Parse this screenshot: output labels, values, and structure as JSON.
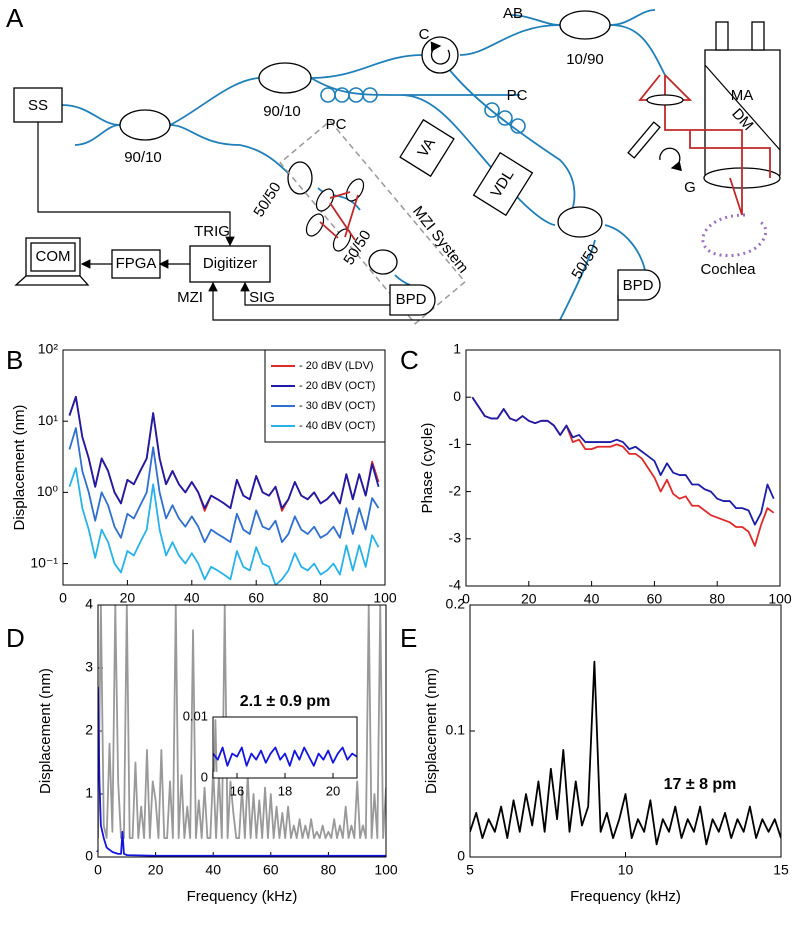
{
  "diagram": {
    "labels": [
      "A",
      "SS",
      "90/10",
      "90/10",
      "PC",
      "C",
      "AB",
      "10/90",
      "PC",
      "VA",
      "VDL",
      "50/50",
      "50/50",
      "50/50",
      "MZI System",
      "BPD",
      "BPD",
      "TRIG",
      "Digitizer",
      "FPGA",
      "COM",
      "MZI",
      "SIG",
      "MA",
      "DM",
      "G",
      "Cochlea"
    ]
  },
  "chart_data": [
    {
      "type": "line",
      "panel_label": "B",
      "ylabel": "Displacement (nm)",
      "log_y": true,
      "legend": "top-right",
      "xlim": [
        0,
        100
      ],
      "xticks": [
        0,
        20,
        40,
        60,
        80,
        100
      ],
      "ylim": [
        0.05,
        100
      ],
      "yticks": [
        {
          "value": 0.1,
          "label": "10⁻¹"
        },
        {
          "value": 1,
          "label": "10⁰"
        },
        {
          "value": 10,
          "label": "10¹"
        },
        {
          "value": 100,
          "label": "10²"
        }
      ],
      "x": [
        2,
        4,
        6,
        8,
        10,
        12,
        14,
        16,
        18,
        20,
        22,
        24,
        26,
        28,
        30,
        32,
        34,
        36,
        38,
        40,
        42,
        44,
        46,
        48,
        50,
        52,
        54,
        56,
        58,
        60,
        62,
        64,
        66,
        68,
        70,
        72,
        74,
        76,
        78,
        80,
        82,
        84,
        86,
        88,
        90,
        92,
        94,
        96,
        98
      ],
      "series": [
        {
          "name": "- 20 dBV (LDV)",
          "color": "#e02a2a",
          "values": [
            12,
            22,
            6,
            3,
            1.2,
            3,
            2,
            1,
            0.7,
            1.5,
            1.3,
            2,
            3,
            13,
            3,
            1.3,
            2,
            1.3,
            1,
            1.4,
            1,
            0.55,
            0.9,
            0.8,
            0.7,
            0.6,
            1.5,
            0.9,
            0.8,
            1.7,
            1,
            0.9,
            1.2,
            0.55,
            0.8,
            1.4,
            0.9,
            0.8,
            1,
            0.7,
            0.8,
            1,
            0.7,
            1.8,
            0.8,
            1.8,
            0.9,
            2.7,
            1.4
          ]
        },
        {
          "name": "- 20 dBV (OCT)",
          "color": "#1c1ca8",
          "values": [
            12,
            22,
            6,
            3,
            1.2,
            3,
            2,
            1,
            0.7,
            1.5,
            1.3,
            2,
            3,
            13,
            3,
            1.3,
            2,
            1.3,
            1,
            1.4,
            1,
            0.6,
            0.9,
            0.8,
            0.7,
            0.6,
            1.5,
            0.9,
            0.8,
            1.7,
            1,
            0.9,
            1.2,
            0.6,
            0.8,
            1.4,
            0.9,
            0.8,
            1,
            0.7,
            0.8,
            1,
            0.7,
            1.8,
            0.8,
            1.8,
            0.9,
            2.5,
            1.2
          ]
        },
        {
          "name": "- 30 dBV (OCT)",
          "color": "#2f6fd0",
          "values": [
            4,
            8,
            2,
            1,
            0.4,
            1,
            0.66,
            0.33,
            0.23,
            0.5,
            0.43,
            0.66,
            1,
            4.3,
            1,
            0.43,
            0.66,
            0.43,
            0.33,
            0.46,
            0.33,
            0.2,
            0.3,
            0.26,
            0.23,
            0.2,
            0.5,
            0.3,
            0.26,
            0.56,
            0.33,
            0.3,
            0.4,
            0.2,
            0.26,
            0.46,
            0.3,
            0.26,
            0.33,
            0.23,
            0.26,
            0.33,
            0.23,
            0.6,
            0.26,
            0.6,
            0.3,
            0.83,
            0.6
          ]
        },
        {
          "name": "- 40 dBV (OCT)",
          "color": "#27b2ea",
          "values": [
            1.2,
            2.2,
            0.6,
            0.3,
            0.12,
            0.3,
            0.2,
            0.1,
            0.075,
            0.15,
            0.13,
            0.2,
            0.3,
            1.3,
            0.3,
            0.13,
            0.2,
            0.13,
            0.1,
            0.14,
            0.1,
            0.06,
            0.09,
            0.08,
            0.07,
            0.06,
            0.15,
            0.09,
            0.08,
            0.17,
            0.1,
            0.09,
            0.05,
            0.06,
            0.08,
            0.14,
            0.09,
            0.08,
            0.1,
            0.07,
            0.08,
            0.1,
            0.07,
            0.18,
            0.08,
            0.18,
            0.09,
            0.25,
            0.17
          ]
        }
      ]
    },
    {
      "type": "line",
      "panel_label": "C",
      "ylabel": "Phase (cycle)",
      "xlim": [
        0,
        100
      ],
      "xticks": [
        0,
        20,
        40,
        60,
        80,
        100
      ],
      "ylim": [
        -4,
        1
      ],
      "yticks": [
        -4,
        -3,
        -2,
        -1,
        0,
        1
      ],
      "x": [
        2,
        4,
        6,
        8,
        10,
        12,
        14,
        16,
        18,
        20,
        22,
        24,
        26,
        28,
        30,
        32,
        34,
        36,
        38,
        40,
        42,
        44,
        46,
        48,
        50,
        52,
        54,
        56,
        58,
        60,
        62,
        64,
        66,
        68,
        70,
        72,
        74,
        76,
        78,
        80,
        82,
        84,
        86,
        88,
        90,
        92,
        94,
        96,
        98
      ],
      "series": [
        {
          "color": "#e02a2a",
          "values": [
            0,
            -0.2,
            -0.4,
            -0.45,
            -0.45,
            -0.25,
            -0.45,
            -0.5,
            -0.4,
            -0.5,
            -0.55,
            -0.5,
            -0.5,
            -0.6,
            -0.8,
            -0.6,
            -0.95,
            -0.9,
            -1.1,
            -1.1,
            -1.05,
            -1.05,
            -1.05,
            -1,
            -1.05,
            -1.2,
            -1.2,
            -1.3,
            -1.5,
            -1.7,
            -2,
            -1.75,
            -2.05,
            -2.15,
            -2.1,
            -2.3,
            -2.3,
            -2.4,
            -2.5,
            -2.55,
            -2.6,
            -2.65,
            -2.75,
            -2.75,
            -2.85,
            -3.15,
            -2.7,
            -2.35,
            -2.45
          ]
        },
        {
          "color": "#1c1ca8",
          "values": [
            0,
            -0.2,
            -0.4,
            -0.45,
            -0.45,
            -0.25,
            -0.45,
            -0.5,
            -0.4,
            -0.5,
            -0.55,
            -0.5,
            -0.5,
            -0.6,
            -0.8,
            -0.6,
            -0.85,
            -0.8,
            -0.95,
            -0.95,
            -0.95,
            -0.95,
            -0.95,
            -0.9,
            -0.95,
            -1.1,
            -1.05,
            -1.15,
            -1.25,
            -1.35,
            -1.65,
            -1.4,
            -1.6,
            -1.65,
            -1.65,
            -1.85,
            -1.85,
            -1.95,
            -2,
            -2.15,
            -2.2,
            -2.2,
            -2.35,
            -2.35,
            -2.4,
            -2.7,
            -2.45,
            -1.85,
            -2.15
          ]
        }
      ]
    },
    {
      "type": "line",
      "panel_label": "D",
      "ylabel": "Displacement (nm)",
      "xlabel": "Frequency (kHz)",
      "xlim": [
        0,
        100
      ],
      "xticks": [
        0,
        20,
        40,
        60,
        80,
        100
      ],
      "ylim": [
        0,
        4
      ],
      "yticks": [
        0,
        1,
        2,
        3,
        4
      ],
      "series": [
        {
          "color": "#999999",
          "x": [
            0,
            1,
            2,
            3,
            4,
            5,
            6,
            7,
            8,
            9,
            10,
            11,
            12,
            13,
            14,
            15,
            16,
            17,
            18,
            19,
            20,
            21,
            22,
            23,
            24,
            25,
            26,
            27,
            28,
            29,
            30,
            31,
            32,
            33,
            34,
            35,
            36,
            37,
            38,
            39,
            40,
            41,
            42,
            43,
            44,
            45,
            46,
            47,
            48,
            49,
            50,
            51,
            52,
            53,
            54,
            55,
            56,
            57,
            58,
            59,
            60,
            61,
            62,
            63,
            64,
            65,
            66,
            67,
            68,
            69,
            70,
            71,
            72,
            73,
            74,
            75,
            76,
            77,
            78,
            79,
            80,
            81,
            82,
            83,
            84,
            85,
            86,
            87,
            88,
            89,
            90,
            91,
            92,
            93,
            94,
            95,
            96,
            97,
            98,
            99,
            100
          ],
          "values": [
            0.3,
            4,
            0.5,
            0.3,
            1.8,
            0.4,
            4,
            1.2,
            0.3,
            0.3,
            4,
            0.3,
            0.3,
            1.5,
            0.3,
            0.8,
            0.3,
            1.7,
            0.3,
            1.2,
            0.9,
            0.3,
            1.7,
            0.3,
            0.3,
            1.2,
            0.3,
            4,
            0.3,
            1.3,
            0.3,
            0.8,
            0.3,
            3.6,
            0.3,
            0.9,
            0.3,
            1.1,
            0.3,
            0.3,
            1.4,
            0.3,
            1.3,
            0.3,
            4,
            0.3,
            1.2,
            0.7,
            0.3,
            0.3,
            1.1,
            0.3,
            1.3,
            0.3,
            1,
            0.3,
            0.9,
            0.3,
            1.1,
            0.3,
            1,
            0.3,
            0.8,
            0.3,
            0.7,
            0.3,
            0.8,
            0.3,
            0.5,
            0.3,
            0.6,
            0.3,
            0.5,
            0.3,
            0.6,
            0.3,
            0.4,
            0.3,
            0.5,
            0.3,
            0.4,
            0.3,
            0.6,
            0.3,
            0.5,
            0.3,
            0.8,
            0.3,
            0.5,
            0.3,
            1.2,
            0.3,
            0.5,
            0.3,
            4,
            0.3,
            1,
            0.3,
            4,
            0.3,
            1.1
          ]
        },
        {
          "color": "#1515e0",
          "x": [
            0,
            0.5,
            1,
            2,
            3,
            5,
            7,
            8,
            8.5,
            9,
            10,
            20,
            40,
            60,
            80,
            100
          ],
          "values": [
            2.7,
            1.2,
            0.5,
            0.3,
            0.15,
            0.08,
            0.05,
            0.05,
            0.4,
            0.05,
            0.03,
            0.02,
            0.02,
            0.02,
            0.02,
            0.02
          ]
        }
      ]
    },
    {
      "type": "line",
      "panel_label": "E",
      "ylabel": "Displacement (nm)",
      "xlabel": "Frequency (kHz)",
      "annotation": "17 ± 8 pm",
      "annotation_color": "#e02020",
      "xlim": [
        5,
        15
      ],
      "xticks": [
        5,
        10,
        15
      ],
      "ylim": [
        0,
        0.2
      ],
      "yticks": [
        0,
        0.1,
        0.2
      ],
      "x": [
        5,
        5.2,
        5.4,
        5.6,
        5.8,
        6,
        6.2,
        6.4,
        6.6,
        6.8,
        7,
        7.2,
        7.4,
        7.6,
        7.8,
        8,
        8.2,
        8.4,
        8.6,
        8.8,
        9,
        9.2,
        9.4,
        9.6,
        9.8,
        10,
        10.2,
        10.4,
        10.6,
        10.8,
        11,
        11.2,
        11.4,
        11.6,
        11.8,
        12,
        12.2,
        12.4,
        12.6,
        12.8,
        13,
        13.2,
        13.4,
        13.6,
        13.8,
        14,
        14.2,
        14.4,
        14.6,
        14.8,
        15
      ],
      "series": [
        {
          "color": "#000000",
          "values": [
            0.02,
            0.035,
            0.015,
            0.03,
            0.02,
            0.04,
            0.015,
            0.045,
            0.02,
            0.05,
            0.025,
            0.06,
            0.02,
            0.07,
            0.03,
            0.085,
            0.02,
            0.06,
            0.025,
            0.04,
            0.155,
            0.02,
            0.035,
            0.015,
            0.03,
            0.05,
            0.015,
            0.03,
            0.02,
            0.045,
            0.01,
            0.03,
            0.02,
            0.04,
            0.015,
            0.03,
            0.02,
            0.04,
            0.01,
            0.03,
            0.02,
            0.035,
            0.015,
            0.03,
            0.02,
            0.04,
            0.015,
            0.03,
            0.02,
            0.03,
            0.015
          ]
        }
      ]
    },
    {
      "type": "line",
      "annotation": "2.1 ± 0.9 pm",
      "annotation_color": "#e02020",
      "xlim": [
        15,
        21
      ],
      "xticks": [
        16,
        18,
        20
      ],
      "ylim": [
        0,
        0.01
      ],
      "yticks": [
        0,
        0.01
      ],
      "series": [
        {
          "color": "#999999",
          "x": [
            15.05,
            15.1,
            15.15
          ],
          "values": [
            0.001,
            0.0095,
            0.001
          ]
        },
        {
          "color": "#1515e0",
          "x": [
            15,
            15.2,
            15.4,
            15.6,
            15.8,
            16,
            16.2,
            16.4,
            16.6,
            16.8,
            17,
            17.2,
            17.4,
            17.6,
            17.8,
            18,
            18.2,
            18.4,
            18.6,
            18.8,
            19,
            19.2,
            19.4,
            19.6,
            19.8,
            20,
            20.2,
            20.4,
            20.6,
            20.8,
            21
          ],
          "values": [
            0.004,
            0.003,
            0.005,
            0.002,
            0.004,
            0.0035,
            0.005,
            0.002,
            0.004,
            0.003,
            0.0045,
            0.0025,
            0.004,
            0.005,
            0.003,
            0.004,
            0.002,
            0.0045,
            0.003,
            0.005,
            0.0035,
            0.002,
            0.004,
            0.003,
            0.0045,
            0.0025,
            0.004,
            0.005,
            0.003,
            0.004,
            0.0035
          ]
        }
      ]
    }
  ]
}
